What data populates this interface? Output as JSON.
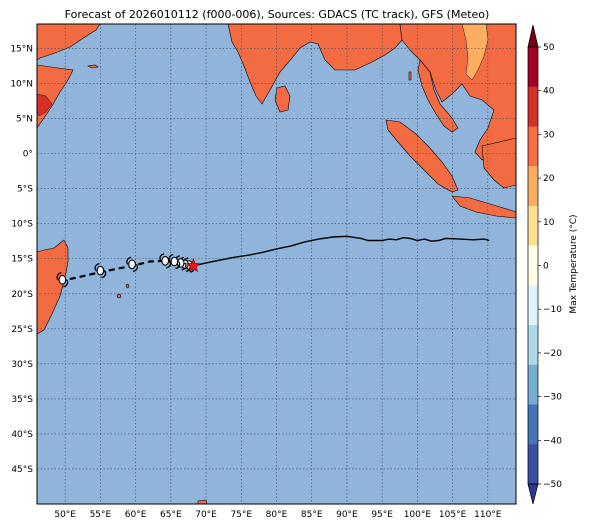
{
  "title": "Forecast of 2026010112 (f000-006), Sources: GDACS (TC track), GFS (Meteo)",
  "map": {
    "lon_range": [
      46,
      114
    ],
    "lat_range": [
      -50,
      18.5
    ],
    "lon_ticks": [
      {
        "v": 50,
        "t": "50°E"
      },
      {
        "v": 55,
        "t": "55°E"
      },
      {
        "v": 60,
        "t": "60°E"
      },
      {
        "v": 65,
        "t": "65°E"
      },
      {
        "v": 70,
        "t": "70°E"
      },
      {
        "v": 75,
        "t": "75°E"
      },
      {
        "v": 80,
        "t": "80°E"
      },
      {
        "v": 85,
        "t": "85°E"
      },
      {
        "v": 90,
        "t": "90°E"
      },
      {
        "v": 95,
        "t": "95°E"
      },
      {
        "v": 100,
        "t": "100°E"
      },
      {
        "v": 105,
        "t": "105°E"
      },
      {
        "v": 110,
        "t": "110°E"
      }
    ],
    "lat_ticks": [
      {
        "v": 15,
        "t": "15°N"
      },
      {
        "v": 10,
        "t": "10°N"
      },
      {
        "v": 5,
        "t": "5°N"
      },
      {
        "v": 0,
        "t": "0°"
      },
      {
        "v": -5,
        "t": "5°S"
      },
      {
        "v": -10,
        "t": "10°S"
      },
      {
        "v": -15,
        "t": "15°S"
      },
      {
        "v": -20,
        "t": "20°S"
      },
      {
        "v": -25,
        "t": "25°S"
      },
      {
        "v": -30,
        "t": "30°S"
      },
      {
        "v": -35,
        "t": "35°S"
      },
      {
        "v": -40,
        "t": "40°S"
      },
      {
        "v": -45,
        "t": "45°S"
      }
    ],
    "ocean_color": "#91b4da",
    "land_color": "#f36b43",
    "warm_land_color": "#fdae61",
    "hot_land_color": "#d73027",
    "grid": true
  },
  "colorbar": {
    "label": "Max Temperature (°C)",
    "ticks": [
      "50",
      "40",
      "30",
      "20",
      "10",
      "0",
      "−10",
      "−20",
      "−30",
      "−40",
      "−50"
    ],
    "range": [
      -50,
      50
    ],
    "colors": [
      "#313695",
      "#3a4fa0",
      "#4575b4",
      "#74add1",
      "#abd9e9",
      "#e0f3f8",
      "#fffee6",
      "#fee090",
      "#fdae61",
      "#f46d43",
      "#d73027",
      "#a50026",
      "#7a0018"
    ]
  },
  "tc_track": {
    "past_track": [
      [
        110.2,
        -12.4
      ],
      [
        109.5,
        -12.2
      ],
      [
        108,
        -12.3
      ],
      [
        106,
        -12.2
      ],
      [
        104,
        -12.1
      ],
      [
        103,
        -12.4
      ],
      [
        102,
        -12.5
      ],
      [
        101,
        -12.2
      ],
      [
        100,
        -12.4
      ],
      [
        99,
        -12.1
      ],
      [
        98,
        -12.0
      ],
      [
        97,
        -12.3
      ],
      [
        96,
        -12.2
      ],
      [
        95,
        -12.4
      ],
      [
        93,
        -12.4
      ],
      [
        92,
        -12.1
      ],
      [
        90,
        -11.8
      ],
      [
        88,
        -11.9
      ],
      [
        86,
        -12.2
      ],
      [
        84,
        -12.6
      ],
      [
        82,
        -13.2
      ],
      [
        80,
        -13.6
      ],
      [
        78,
        -14.1
      ],
      [
        76,
        -14.5
      ],
      [
        74,
        -14.8
      ],
      [
        72,
        -15.2
      ],
      [
        70,
        -15.6
      ],
      [
        68.2,
        -16.0
      ]
    ],
    "current_position": [
      68.2,
      -16.0
    ],
    "forecast_track": [
      [
        68.2,
        -16.0
      ],
      [
        66.5,
        -15.7
      ],
      [
        64.5,
        -15.3
      ],
      [
        62,
        -15.4
      ],
      [
        60,
        -15.9
      ],
      [
        57,
        -16.5
      ],
      [
        55,
        -16.9
      ],
      [
        52,
        -17.6
      ],
      [
        49.7,
        -18.1
      ]
    ],
    "forecast_markers": [
      [
        67.6,
        -15.9
      ],
      [
        67.0,
        -15.8
      ],
      [
        66.4,
        -15.6
      ],
      [
        65.5,
        -15.4
      ],
      [
        64.2,
        -15.3
      ],
      [
        59.5,
        -15.8
      ],
      [
        55.0,
        -16.7
      ],
      [
        49.6,
        -18.0
      ]
    ]
  }
}
